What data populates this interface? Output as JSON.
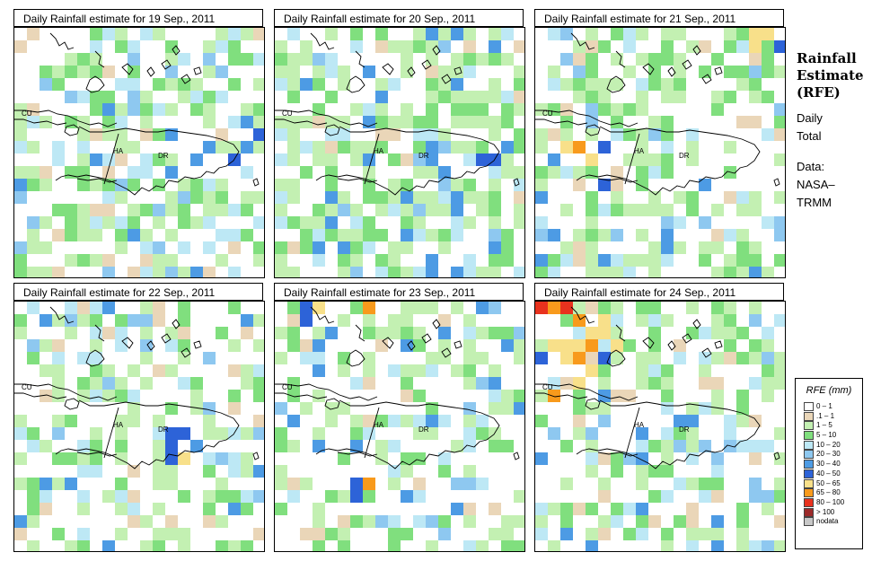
{
  "panels": [
    {
      "title": "Daily Rainfall estimate for  19 Sep., 2011",
      "seed": 19,
      "cover": 0.46,
      "hot": [
        {
          "c": 18,
          "r": 7,
          "lvl": 6
        },
        {
          "c": 19,
          "r": 8,
          "lvl": 7
        },
        {
          "c": 18,
          "r": 9,
          "lvl": 6
        },
        {
          "c": 15,
          "r": 9,
          "lvl": 6
        },
        {
          "c": 17,
          "r": 10,
          "lvl": 7
        }
      ]
    },
    {
      "title": "Daily Rainfall estimate for  20 Sep., 2011",
      "seed": 20,
      "cover": 0.58,
      "hot": [
        {
          "c": 16,
          "r": 10,
          "lvl": 7
        },
        {
          "c": 17,
          "r": 10,
          "lvl": 7
        },
        {
          "c": 13,
          "r": 11,
          "lvl": 6
        },
        {
          "c": 12,
          "r": 9,
          "lvl": 6
        }
      ]
    },
    {
      "title": "Daily Rainfall estimate for  21 Sep., 2011",
      "seed": 21,
      "cover": 0.48,
      "hot": [
        {
          "c": 17,
          "r": 0,
          "lvl": 8
        },
        {
          "c": 18,
          "r": 0,
          "lvl": 8
        },
        {
          "c": 17,
          "r": 1,
          "lvl": 8
        },
        {
          "c": 19,
          "r": 1,
          "lvl": 7
        },
        {
          "c": 3,
          "r": 9,
          "lvl": 9
        },
        {
          "c": 2,
          "r": 9,
          "lvl": 8
        },
        {
          "c": 4,
          "r": 10,
          "lvl": 8
        },
        {
          "c": 5,
          "r": 9,
          "lvl": 7
        },
        {
          "c": 5,
          "r": 12,
          "lvl": 7
        }
      ]
    },
    {
      "title": "Daily Rainfall estimate for  22 Sep., 2011",
      "seed": 22,
      "cover": 0.38,
      "hot": [
        {
          "c": 12,
          "r": 10,
          "lvl": 7
        },
        {
          "c": 13,
          "r": 10,
          "lvl": 7
        },
        {
          "c": 12,
          "r": 11,
          "lvl": 7
        },
        {
          "c": 14,
          "r": 11,
          "lvl": 6
        },
        {
          "c": 13,
          "r": 12,
          "lvl": 8
        },
        {
          "c": 12,
          "r": 12,
          "lvl": 7
        }
      ]
    },
    {
      "title": "Daily Rainfall estimate for  23 Sep., 2011",
      "seed": 23,
      "cover": 0.42,
      "hot": [
        {
          "c": 2,
          "r": 0,
          "lvl": 7
        },
        {
          "c": 3,
          "r": 0,
          "lvl": 8
        },
        {
          "c": 7,
          "r": 0,
          "lvl": 9
        },
        {
          "c": 2,
          "r": 1,
          "lvl": 7
        },
        {
          "c": 6,
          "r": 14,
          "lvl": 7
        },
        {
          "c": 7,
          "r": 14,
          "lvl": 9
        },
        {
          "c": 6,
          "r": 15,
          "lvl": 7
        }
      ]
    },
    {
      "title": "Daily Rainfall estimate for  24 Sep., 2011",
      "seed": 24,
      "cover": 0.4,
      "hot": [
        {
          "c": 0,
          "r": 0,
          "lvl": 10
        },
        {
          "c": 1,
          "r": 0,
          "lvl": 9
        },
        {
          "c": 2,
          "r": 0,
          "lvl": 10
        },
        {
          "c": 3,
          "r": 1,
          "lvl": 9
        },
        {
          "c": 5,
          "r": 1,
          "lvl": 8
        },
        {
          "c": 4,
          "r": 2,
          "lvl": 8
        },
        {
          "c": 5,
          "r": 2,
          "lvl": 8
        },
        {
          "c": 2,
          "r": 3,
          "lvl": 8
        },
        {
          "c": 3,
          "r": 3,
          "lvl": 8
        },
        {
          "c": 4,
          "r": 3,
          "lvl": 9
        },
        {
          "c": 6,
          "r": 3,
          "lvl": 8
        },
        {
          "c": 1,
          "r": 3,
          "lvl": 8
        },
        {
          "c": 2,
          "r": 4,
          "lvl": 8
        },
        {
          "c": 3,
          "r": 4,
          "lvl": 9
        },
        {
          "c": 5,
          "r": 4,
          "lvl": 7
        },
        {
          "c": 4,
          "r": 5,
          "lvl": 8
        },
        {
          "c": 3,
          "r": 6,
          "lvl": 8
        },
        {
          "c": 1,
          "r": 7,
          "lvl": 9
        },
        {
          "c": 0,
          "r": 4,
          "lvl": 7
        }
      ]
    }
  ],
  "map_labels": {
    "cuba": "CU",
    "haiti": "HA",
    "dr": "DR"
  },
  "side": {
    "line1": "Rainfall",
    "line2": "Estimate",
    "line3": "(RFE)",
    "daily": "Daily",
    "total": "Total",
    "data1": "Data:",
    "data2": "NASA–",
    "data3": "TRMM"
  },
  "legend": {
    "title": "RFE (mm)",
    "items": [
      {
        "label": "0 – 1",
        "color": "#ffffff"
      },
      {
        "label": ".1 – 1",
        "color": "#ead6b8"
      },
      {
        "label": "1 – 5",
        "color": "#c3f0b2"
      },
      {
        "label": "5 – 10",
        "color": "#80df7e"
      },
      {
        "label": "10 – 20",
        "color": "#bde8f5"
      },
      {
        "label": "20 – 30",
        "color": "#8ec8f0"
      },
      {
        "label": "30 – 40",
        "color": "#4d9be4"
      },
      {
        "label": "40 – 50",
        "color": "#2d63d8"
      },
      {
        "label": "50 – 65",
        "color": "#f8e08a"
      },
      {
        "label": "65 – 80",
        "color": "#f89a1c"
      },
      {
        "label": "80 – 100",
        "color": "#e8321e"
      },
      {
        "label": "> 100",
        "color": "#9c2a2a"
      },
      {
        "label": "nodata",
        "color": "#c8c8c8"
      }
    ]
  }
}
